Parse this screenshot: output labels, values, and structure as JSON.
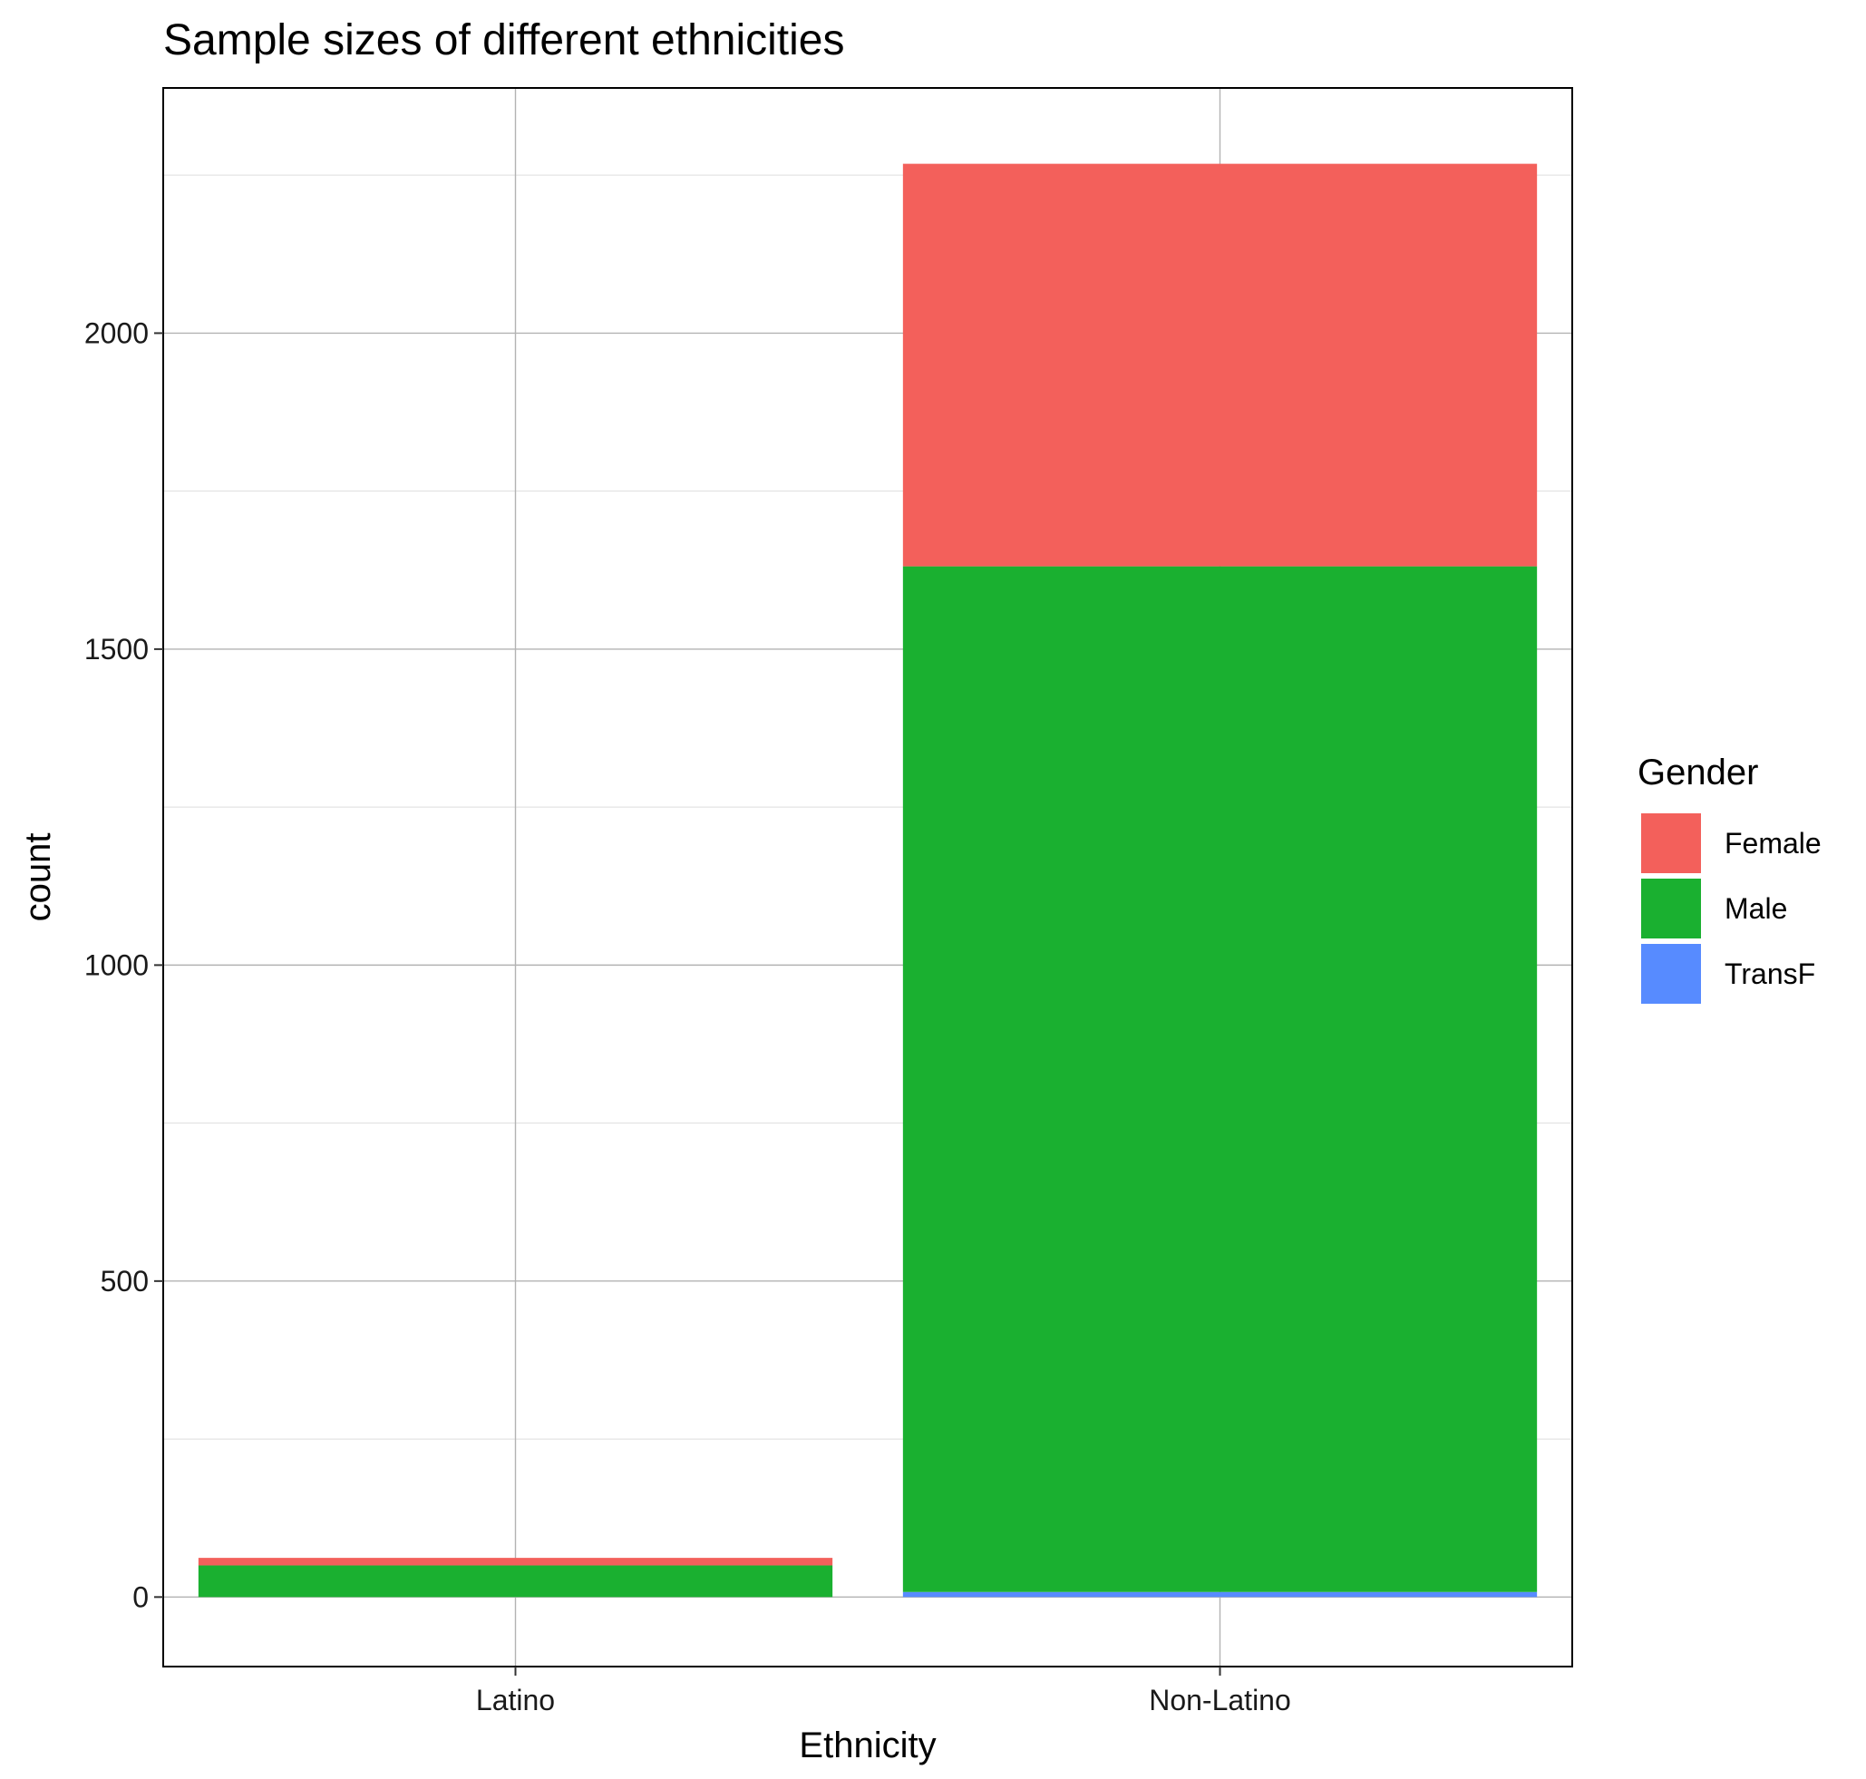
{
  "chart_data": {
    "type": "bar",
    "stacked": true,
    "title": "Sample sizes of different ethnicities",
    "xlabel": "Ethnicity",
    "ylabel": "count",
    "categories": [
      "Latino",
      "Non-Latino"
    ],
    "series": [
      {
        "name": "Female",
        "color": "#F3605B",
        "values": [
          12,
          637
        ]
      },
      {
        "name": "Male",
        "color": "#1AB030",
        "values": [
          50,
          1623
        ]
      },
      {
        "name": "TransF",
        "color": "#578BFF",
        "values": [
          0,
          8
        ]
      }
    ],
    "stack_order_bottom_to_top": [
      "TransF",
      "Male",
      "Female"
    ],
    "ylim": [
      -110,
      2388
    ],
    "yticks": [
      0,
      500,
      1000,
      1500,
      2000
    ],
    "ytick_labels": [
      "0",
      "500",
      "1000",
      "1500",
      "2000"
    ],
    "grid": true,
    "legend": {
      "title": "Gender",
      "position": "right"
    }
  }
}
